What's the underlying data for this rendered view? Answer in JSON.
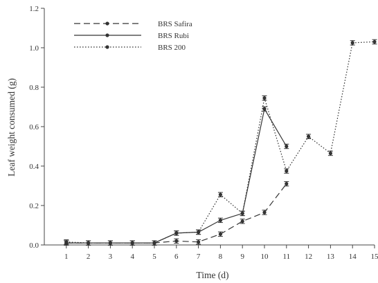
{
  "chart_data": {
    "type": "line",
    "xlabel": "Time (d)",
    "ylabel": "Leaf weight consumed (g)",
    "x_ticks": [
      "1",
      "2",
      "3",
      "4",
      "5",
      "6",
      "7",
      "8",
      "9",
      "10",
      "11",
      "12",
      "13",
      "14",
      "15"
    ],
    "y_ticks": [
      "0.0",
      "0.2",
      "0.4",
      "0.6",
      "0.8",
      "1.0",
      "1.2"
    ],
    "xlim": [
      0,
      15
    ],
    "ylim": [
      0,
      1.2
    ],
    "grid": false,
    "legend_position": "top-left",
    "series": [
      {
        "name": "BRS Safira",
        "line_style": "dashed",
        "color": "#333333",
        "x": [
          1,
          2,
          3,
          4,
          5,
          6,
          7,
          8,
          9,
          10,
          11
        ],
        "values": [
          0.01,
          0.01,
          0.01,
          0.01,
          0.01,
          0.02,
          0.015,
          0.055,
          0.12,
          0.165,
          0.31
        ]
      },
      {
        "name": "BRS Rubi",
        "line_style": "solid",
        "color": "#333333",
        "x": [
          1,
          2,
          3,
          4,
          5,
          6,
          7,
          8,
          9,
          10,
          11
        ],
        "values": [
          0.01,
          0.01,
          0.01,
          0.01,
          0.01,
          0.06,
          0.065,
          0.125,
          0.16,
          0.69,
          0.5
        ]
      },
      {
        "name": "BRS 200",
        "line_style": "dotted",
        "color": "#333333",
        "x": [
          1,
          2,
          3,
          4,
          5,
          6,
          7,
          8,
          9,
          10,
          11,
          12,
          13,
          14,
          15
        ],
        "values": [
          0.015,
          0.01,
          0.01,
          0.01,
          0.01,
          0.06,
          0.065,
          0.255,
          0.16,
          0.745,
          0.375,
          0.55,
          0.465,
          1.025,
          1.03
        ]
      }
    ]
  }
}
